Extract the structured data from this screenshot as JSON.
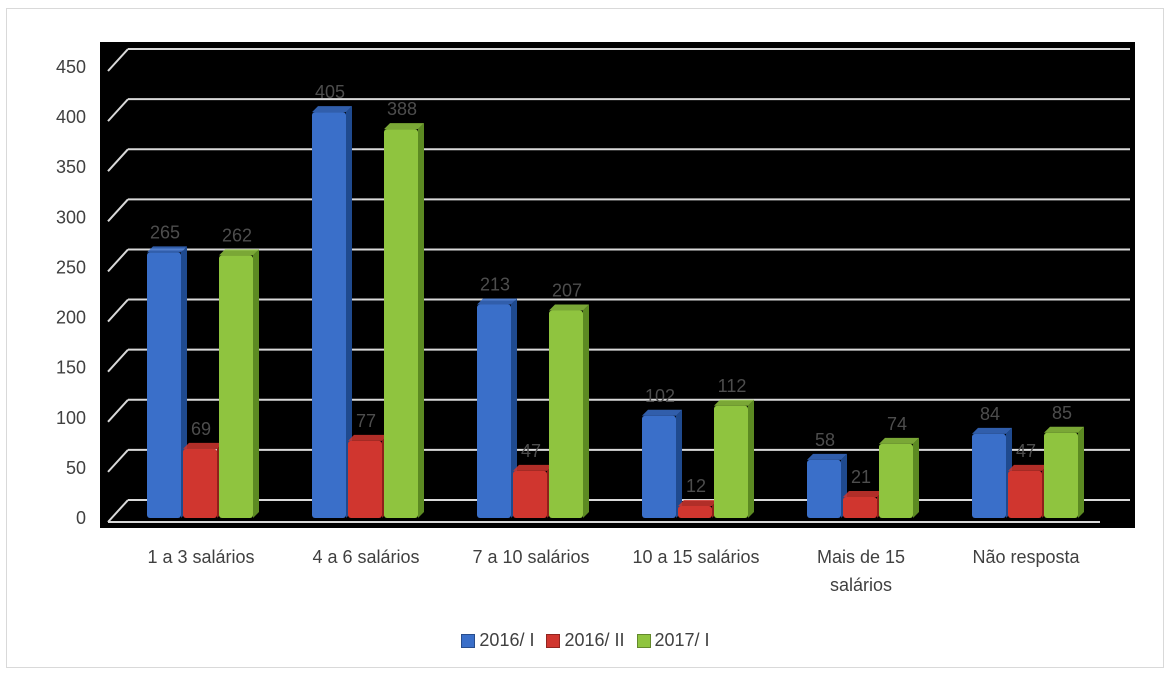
{
  "chart_data": {
    "type": "bar",
    "title": "",
    "xlabel": "",
    "ylabel": "",
    "ylim": [
      0,
      450
    ],
    "yticks": [
      0,
      50,
      100,
      150,
      200,
      250,
      300,
      350,
      400,
      450
    ],
    "grid": true,
    "legend_position": "bottom",
    "background": "#000000",
    "categories": [
      [
        "1 a 3 salários"
      ],
      [
        "4 a 6 salários"
      ],
      [
        "7 a 10 salários"
      ],
      [
        "10 a 15 salários"
      ],
      [
        "Mais de 15",
        "salários"
      ],
      [
        "Não resposta"
      ]
    ],
    "series": [
      {
        "name": "2016/ I",
        "color": "#3a6fc9",
        "side": "#1f4a8f",
        "values": [
          265,
          405,
          213,
          102,
          58,
          84
        ]
      },
      {
        "name": "2016/ II",
        "color": "#d0362f",
        "side": "#8f1f1a",
        "values": [
          69,
          77,
          47,
          12,
          21,
          47
        ]
      },
      {
        "name": "2017/ I",
        "color": "#8fc43f",
        "side": "#5c8a22",
        "values": [
          262,
          388,
          207,
          112,
          74,
          85
        ]
      }
    ],
    "data_labels": [
      [
        "265",
        "405",
        "213",
        "102",
        "58",
        "84"
      ],
      [
        "69",
        "77",
        "47",
        "12",
        "21",
        "47"
      ],
      [
        "262",
        "388",
        "207",
        "112",
        "74",
        "85"
      ]
    ]
  }
}
